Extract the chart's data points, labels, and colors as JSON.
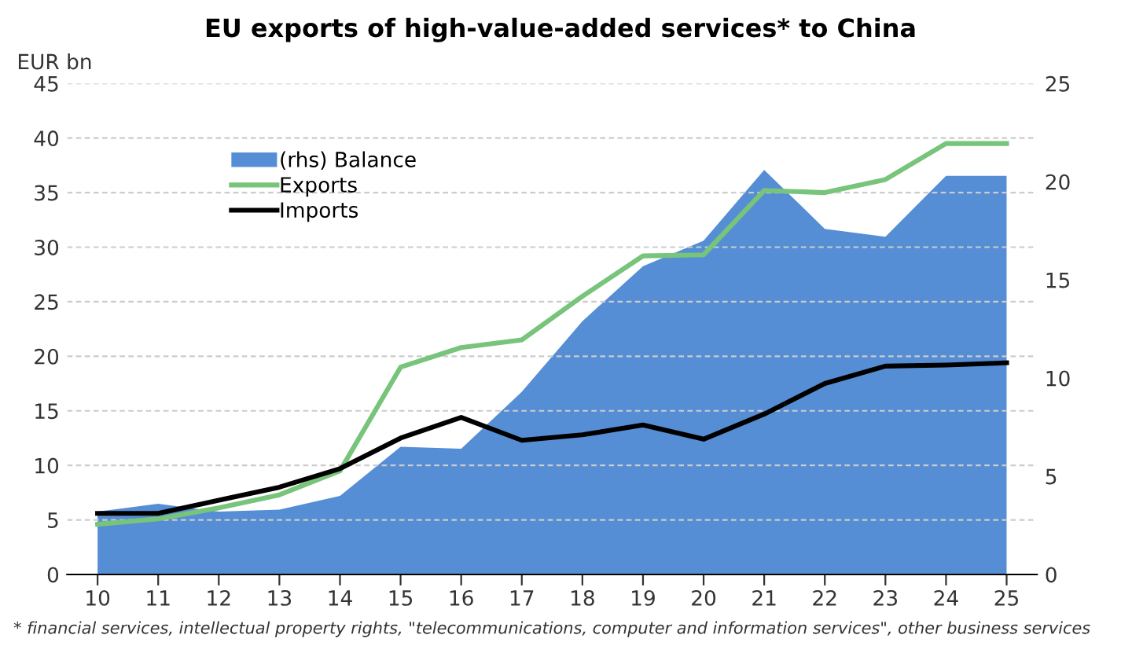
{
  "chart_data": {
    "type": "line",
    "title": "EU exports of high-value-added services* to China",
    "ylabel": "EUR bn",
    "categories": [
      "10",
      "11",
      "12",
      "13",
      "14",
      "15",
      "16",
      "17",
      "18",
      "19",
      "20",
      "21",
      "22",
      "23",
      "24",
      "25"
    ],
    "series": [
      {
        "name": "(rhs) Balance",
        "type": "area",
        "axis": "y2",
        "color": "#558ed5",
        "values": [
          3.2,
          3.6,
          3.2,
          3.3,
          4.0,
          6.5,
          6.4,
          9.3,
          12.9,
          15.7,
          17.0,
          20.6,
          17.6,
          17.2,
          20.3,
          20.3
        ]
      },
      {
        "name": "Exports",
        "color": "#77c47a",
        "values": [
          4.6,
          5.1,
          6.1,
          7.3,
          9.5,
          19.0,
          20.8,
          21.5,
          25.5,
          29.2,
          29.3,
          35.2,
          35.0,
          36.2,
          39.5,
          39.5
        ]
      },
      {
        "name": "Imports",
        "color": "#000000",
        "values": [
          5.6,
          5.6,
          6.8,
          8.0,
          9.7,
          12.5,
          14.4,
          12.3,
          12.8,
          13.7,
          12.4,
          14.7,
          17.5,
          19.1,
          19.2,
          19.4
        ]
      }
    ],
    "ylim": [
      0,
      45
    ],
    "yticks": [
      0,
      5,
      10,
      15,
      20,
      25,
      30,
      35,
      40,
      45
    ],
    "y2lim": [
      0,
      25
    ],
    "y2ticks": [
      0,
      5,
      10,
      15,
      20,
      25
    ],
    "grid": "y",
    "legend": "top left",
    "annotations": [
      "* financial services, intellectual property rights, \"telecommunications, computer and information services\", other business services"
    ]
  }
}
